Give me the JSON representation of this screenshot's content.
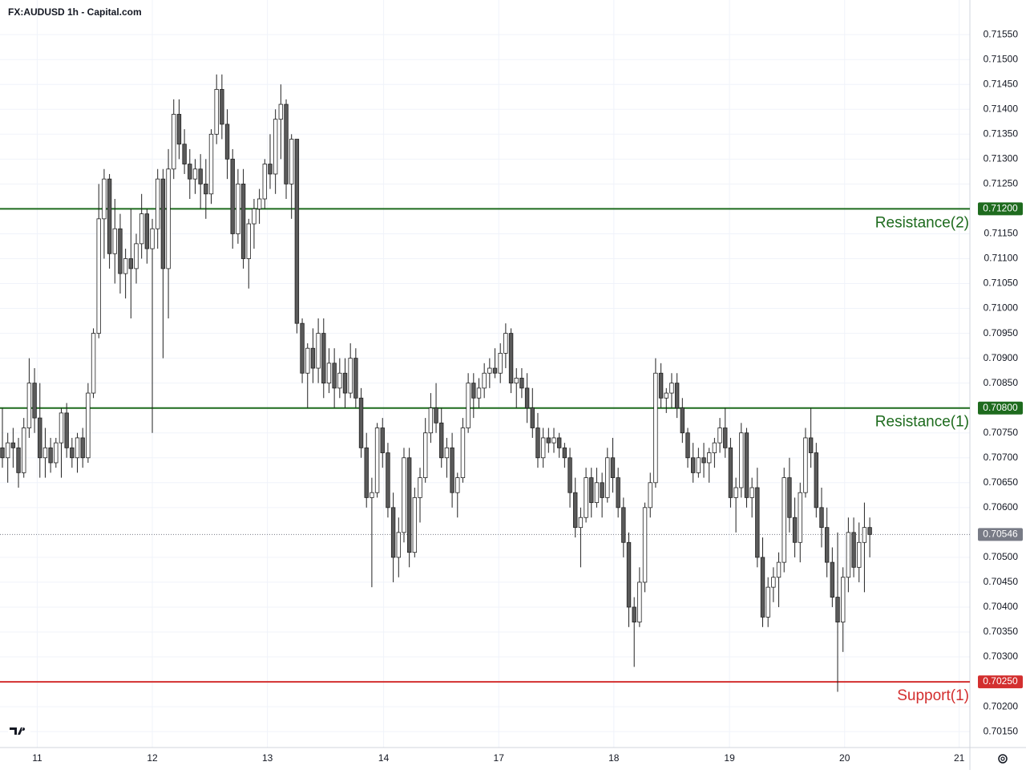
{
  "chart_data": {
    "type": "candlestick",
    "title": "FX:AUDUSD 1h - Capital.com",
    "up_color": "#ffffff",
    "down_color": "#5a5a5a",
    "grid": true,
    "ylim": [
      0.70118,
      0.71568
    ],
    "xlim": [
      -0.45,
      180.7
    ],
    "yticks": [
      {
        "value": 0.7155,
        "label": "0.71550"
      },
      {
        "value": 0.715,
        "label": "0.71500"
      },
      {
        "value": 0.7145,
        "label": "0.71450"
      },
      {
        "value": 0.714,
        "label": "0.71400"
      },
      {
        "value": 0.7135,
        "label": "0.71350"
      },
      {
        "value": 0.713,
        "label": "0.71300"
      },
      {
        "value": 0.7125,
        "label": "0.71250"
      },
      {
        "value": 0.7115,
        "label": "0.71150"
      },
      {
        "value": 0.711,
        "label": "0.71100"
      },
      {
        "value": 0.7105,
        "label": "0.71050"
      },
      {
        "value": 0.71,
        "label": "0.71000"
      },
      {
        "value": 0.7095,
        "label": "0.70950"
      },
      {
        "value": 0.709,
        "label": "0.70900"
      },
      {
        "value": 0.7085,
        "label": "0.70850"
      },
      {
        "value": 0.7075,
        "label": "0.70750"
      },
      {
        "value": 0.707,
        "label": "0.70700"
      },
      {
        "value": 0.7065,
        "label": "0.70650"
      },
      {
        "value": 0.706,
        "label": "0.70600"
      },
      {
        "value": 0.705,
        "label": "0.70500"
      },
      {
        "value": 0.7045,
        "label": "0.70450"
      },
      {
        "value": 0.704,
        "label": "0.70400"
      },
      {
        "value": 0.7035,
        "label": "0.70350"
      },
      {
        "value": 0.703,
        "label": "0.70300"
      },
      {
        "value": 0.702,
        "label": "0.70200"
      },
      {
        "value": 0.7015,
        "label": "0.70150"
      }
    ],
    "xticks": [
      {
        "value": 6.5,
        "label": "11"
      },
      {
        "value": 28,
        "label": "12"
      },
      {
        "value": 49.5,
        "label": "13"
      },
      {
        "value": 71.2,
        "label": "14"
      },
      {
        "value": 92.7,
        "label": "17"
      },
      {
        "value": 114.2,
        "label": "18"
      },
      {
        "value": 135.8,
        "label": "19"
      },
      {
        "value": 157.3,
        "label": "20"
      },
      {
        "value": 178.7,
        "label": "21"
      }
    ],
    "levels": [
      {
        "name": "Resistance(2)",
        "value": 0.712,
        "label": "0.71200",
        "color": "#1e6b1e"
      },
      {
        "name": "Resistance(1)",
        "value": 0.708,
        "label": "0.70800",
        "color": "#1e6b1e"
      },
      {
        "name": "Support(1)",
        "value": 0.7025,
        "label": "0.70250",
        "color": "#d32f2f"
      }
    ],
    "last_price": {
      "value": 0.70546,
      "label": "0.70546",
      "color": "#787b86"
    },
    "ohlc": [
      [
        0.7072,
        0.708,
        0.7068,
        0.707
      ],
      [
        0.707,
        0.7075,
        0.7065,
        0.7073
      ],
      [
        0.7073,
        0.7076,
        0.7068,
        0.7072
      ],
      [
        0.7072,
        0.7074,
        0.7064,
        0.7067
      ],
      [
        0.7067,
        0.7078,
        0.7066,
        0.7076
      ],
      [
        0.7076,
        0.709,
        0.7074,
        0.7085
      ],
      [
        0.7085,
        0.7088,
        0.7075,
        0.7078
      ],
      [
        0.7078,
        0.7085,
        0.7066,
        0.707
      ],
      [
        0.707,
        0.7076,
        0.7066,
        0.7072
      ],
      [
        0.7072,
        0.7074,
        0.7067,
        0.7069
      ],
      [
        0.7069,
        0.7074,
        0.7068,
        0.7073
      ],
      [
        0.7073,
        0.708,
        0.7066,
        0.7079
      ],
      [
        0.7079,
        0.7081,
        0.707,
        0.7072
      ],
      [
        0.7072,
        0.7074,
        0.7068,
        0.707
      ],
      [
        0.707,
        0.7075,
        0.7067,
        0.7074
      ],
      [
        0.7074,
        0.7076,
        0.7068,
        0.707
      ],
      [
        0.707,
        0.7085,
        0.7069,
        0.7083
      ],
      [
        0.7083,
        0.7096,
        0.7082,
        0.7095
      ],
      [
        0.7095,
        0.7125,
        0.7094,
        0.7118
      ],
      [
        0.7118,
        0.7128,
        0.711,
        0.7126
      ],
      [
        0.7126,
        0.7127,
        0.7108,
        0.7111
      ],
      [
        0.7111,
        0.7122,
        0.7105,
        0.7116
      ],
      [
        0.7116,
        0.7119,
        0.7103,
        0.7107
      ],
      [
        0.7107,
        0.7112,
        0.7102,
        0.711
      ],
      [
        0.711,
        0.712,
        0.7098,
        0.7108
      ],
      [
        0.7108,
        0.7115,
        0.7105,
        0.7113
      ],
      [
        0.7113,
        0.7123,
        0.711,
        0.7119
      ],
      [
        0.7119,
        0.712,
        0.7109,
        0.7112
      ],
      [
        0.7112,
        0.7118,
        0.7075,
        0.7116
      ],
      [
        0.7116,
        0.7128,
        0.7112,
        0.7126
      ],
      [
        0.7126,
        0.7128,
        0.709,
        0.7108
      ],
      [
        0.7108,
        0.7132,
        0.7098,
        0.7128
      ],
      [
        0.7128,
        0.7142,
        0.7126,
        0.7139
      ],
      [
        0.7139,
        0.7142,
        0.713,
        0.7133
      ],
      [
        0.7133,
        0.7136,
        0.7127,
        0.7129
      ],
      [
        0.7129,
        0.7132,
        0.7122,
        0.7126
      ],
      [
        0.7126,
        0.713,
        0.7123,
        0.7128
      ],
      [
        0.7128,
        0.7131,
        0.712,
        0.7125
      ],
      [
        0.7125,
        0.713,
        0.7118,
        0.7123
      ],
      [
        0.7123,
        0.7136,
        0.7121,
        0.7135
      ],
      [
        0.7135,
        0.7147,
        0.7133,
        0.7144
      ],
      [
        0.7144,
        0.7147,
        0.7134,
        0.7137
      ],
      [
        0.7137,
        0.714,
        0.7126,
        0.713
      ],
      [
        0.713,
        0.7132,
        0.7112,
        0.7115
      ],
      [
        0.7115,
        0.7128,
        0.7113,
        0.7125
      ],
      [
        0.7125,
        0.7128,
        0.7108,
        0.711
      ],
      [
        0.711,
        0.7118,
        0.7104,
        0.7117
      ],
      [
        0.7117,
        0.7122,
        0.7112,
        0.712
      ],
      [
        0.712,
        0.7124,
        0.7117,
        0.7122
      ],
      [
        0.7122,
        0.713,
        0.712,
        0.7129
      ],
      [
        0.7129,
        0.7135,
        0.7124,
        0.7127
      ],
      [
        0.7127,
        0.714,
        0.7123,
        0.7138
      ],
      [
        0.7138,
        0.7145,
        0.713,
        0.7141
      ],
      [
        0.7141,
        0.7142,
        0.7122,
        0.7125
      ],
      [
        0.7125,
        0.7135,
        0.7118,
        0.7134
      ],
      [
        0.7134,
        0.7134,
        0.7095,
        0.7097
      ],
      [
        0.7097,
        0.7098,
        0.7085,
        0.7087
      ],
      [
        0.7087,
        0.7093,
        0.708,
        0.7092
      ],
      [
        0.7092,
        0.7096,
        0.7085,
        0.7088
      ],
      [
        0.7088,
        0.7098,
        0.7085,
        0.7095
      ],
      [
        0.7095,
        0.7098,
        0.7082,
        0.7085
      ],
      [
        0.7085,
        0.7092,
        0.7083,
        0.7089
      ],
      [
        0.7089,
        0.7092,
        0.708,
        0.7084
      ],
      [
        0.7084,
        0.709,
        0.7082,
        0.7087
      ],
      [
        0.7087,
        0.709,
        0.708,
        0.7083
      ],
      [
        0.7083,
        0.7093,
        0.7082,
        0.709
      ],
      [
        0.709,
        0.7092,
        0.708,
        0.7082
      ],
      [
        0.7082,
        0.7084,
        0.707,
        0.7072
      ],
      [
        0.7072,
        0.7075,
        0.706,
        0.7062
      ],
      [
        0.7062,
        0.7066,
        0.7044,
        0.7063
      ],
      [
        0.7063,
        0.7077,
        0.7062,
        0.7076
      ],
      [
        0.7076,
        0.7078,
        0.7068,
        0.7071
      ],
      [
        0.7071,
        0.7073,
        0.7058,
        0.706
      ],
      [
        0.706,
        0.7063,
        0.7045,
        0.705
      ],
      [
        0.705,
        0.7058,
        0.7046,
        0.7055
      ],
      [
        0.7055,
        0.7072,
        0.7053,
        0.707
      ],
      [
        0.707,
        0.7072,
        0.7048,
        0.7051
      ],
      [
        0.7051,
        0.7064,
        0.705,
        0.7062
      ],
      [
        0.7062,
        0.7068,
        0.7057,
        0.7066
      ],
      [
        0.7066,
        0.7078,
        0.7065,
        0.7075
      ],
      [
        0.7075,
        0.7083,
        0.7073,
        0.708
      ],
      [
        0.708,
        0.7085,
        0.7075,
        0.7077
      ],
      [
        0.7077,
        0.708,
        0.7068,
        0.707
      ],
      [
        0.707,
        0.7074,
        0.7066,
        0.7072
      ],
      [
        0.7072,
        0.7075,
        0.706,
        0.7063
      ],
      [
        0.7063,
        0.7067,
        0.7058,
        0.7066
      ],
      [
        0.7066,
        0.7078,
        0.7065,
        0.7076
      ],
      [
        0.7076,
        0.7087,
        0.7075,
        0.7085
      ],
      [
        0.7085,
        0.7087,
        0.7078,
        0.7082
      ],
      [
        0.7082,
        0.7086,
        0.708,
        0.7084
      ],
      [
        0.7084,
        0.7089,
        0.7082,
        0.7087
      ],
      [
        0.7087,
        0.709,
        0.7084,
        0.7088
      ],
      [
        0.7088,
        0.7092,
        0.7086,
        0.7087
      ],
      [
        0.7087,
        0.7093,
        0.7085,
        0.7091
      ],
      [
        0.7091,
        0.7097,
        0.7088,
        0.7095
      ],
      [
        0.7095,
        0.7096,
        0.7083,
        0.7085
      ],
      [
        0.7085,
        0.7088,
        0.708,
        0.7086
      ],
      [
        0.7086,
        0.7088,
        0.7082,
        0.7084
      ],
      [
        0.7084,
        0.7087,
        0.7077,
        0.708
      ],
      [
        0.708,
        0.7084,
        0.7074,
        0.7076
      ],
      [
        0.7076,
        0.7079,
        0.7068,
        0.707
      ],
      [
        0.707,
        0.7076,
        0.7068,
        0.7074
      ],
      [
        0.7074,
        0.7076,
        0.7071,
        0.7073
      ],
      [
        0.7073,
        0.7076,
        0.7071,
        0.7074
      ],
      [
        0.7074,
        0.7075,
        0.707,
        0.7072
      ],
      [
        0.7072,
        0.7073,
        0.7068,
        0.707
      ],
      [
        0.707,
        0.7072,
        0.706,
        0.7063
      ],
      [
        0.7063,
        0.7066,
        0.7054,
        0.7056
      ],
      [
        0.7056,
        0.706,
        0.7048,
        0.7058
      ],
      [
        0.7058,
        0.7068,
        0.7057,
        0.7066
      ],
      [
        0.7066,
        0.7068,
        0.7058,
        0.7061
      ],
      [
        0.7061,
        0.7068,
        0.706,
        0.7065
      ],
      [
        0.7065,
        0.7067,
        0.7058,
        0.7062
      ],
      [
        0.7062,
        0.7072,
        0.7061,
        0.707
      ],
      [
        0.707,
        0.7074,
        0.7063,
        0.7066
      ],
      [
        0.7066,
        0.7068,
        0.7058,
        0.706
      ],
      [
        0.706,
        0.7062,
        0.705,
        0.7053
      ],
      [
        0.7053,
        0.7055,
        0.7036,
        0.704
      ],
      [
        0.704,
        0.7042,
        0.7028,
        0.7037
      ],
      [
        0.7037,
        0.7048,
        0.7036,
        0.7045
      ],
      [
        0.7045,
        0.7061,
        0.7043,
        0.706
      ],
      [
        0.706,
        0.7067,
        0.7058,
        0.7065
      ],
      [
        0.7065,
        0.709,
        0.7064,
        0.7087
      ],
      [
        0.7087,
        0.7089,
        0.708,
        0.7082
      ],
      [
        0.7082,
        0.7084,
        0.7079,
        0.7083
      ],
      [
        0.7083,
        0.7087,
        0.708,
        0.7085
      ],
      [
        0.7085,
        0.7087,
        0.7078,
        0.708
      ],
      [
        0.708,
        0.7082,
        0.7073,
        0.7075
      ],
      [
        0.7075,
        0.7076,
        0.7068,
        0.707
      ],
      [
        0.707,
        0.7073,
        0.7065,
        0.7067
      ],
      [
        0.7067,
        0.7072,
        0.7066,
        0.707
      ],
      [
        0.707,
        0.7073,
        0.7066,
        0.7069
      ],
      [
        0.7069,
        0.7072,
        0.7065,
        0.7071
      ],
      [
        0.7071,
        0.7074,
        0.7068,
        0.7073
      ],
      [
        0.7073,
        0.7078,
        0.7071,
        0.7076
      ],
      [
        0.7076,
        0.708,
        0.707,
        0.7072
      ],
      [
        0.7072,
        0.7074,
        0.706,
        0.7062
      ],
      [
        0.7062,
        0.7066,
        0.7055,
        0.7064
      ],
      [
        0.7064,
        0.7077,
        0.7062,
        0.7075
      ],
      [
        0.7075,
        0.7076,
        0.706,
        0.7062
      ],
      [
        0.7062,
        0.7066,
        0.7058,
        0.7064
      ],
      [
        0.7064,
        0.7068,
        0.7048,
        0.705
      ],
      [
        0.705,
        0.7054,
        0.7036,
        0.7038
      ],
      [
        0.7038,
        0.7046,
        0.7036,
        0.7044
      ],
      [
        0.7044,
        0.7048,
        0.7041,
        0.7046
      ],
      [
        0.7046,
        0.7051,
        0.704,
        0.7049
      ],
      [
        0.7049,
        0.7068,
        0.7047,
        0.7066
      ],
      [
        0.7066,
        0.707,
        0.7055,
        0.7058
      ],
      [
        0.7058,
        0.7062,
        0.705,
        0.7053
      ],
      [
        0.7053,
        0.7065,
        0.7049,
        0.7063
      ],
      [
        0.7063,
        0.7076,
        0.7062,
        0.7074
      ],
      [
        0.7074,
        0.708,
        0.7068,
        0.7071
      ],
      [
        0.7071,
        0.7073,
        0.7058,
        0.706
      ],
      [
        0.706,
        0.7064,
        0.7052,
        0.7056
      ],
      [
        0.7056,
        0.706,
        0.7046,
        0.7049
      ],
      [
        0.7049,
        0.7052,
        0.704,
        0.7042
      ],
      [
        0.7042,
        0.7055,
        0.7023,
        0.7037
      ],
      [
        0.7037,
        0.7048,
        0.7031,
        0.7046
      ],
      [
        0.7046,
        0.7058,
        0.7043,
        0.7055
      ],
      [
        0.7055,
        0.7058,
        0.7046,
        0.7048
      ],
      [
        0.7048,
        0.7057,
        0.7045,
        0.7053
      ],
      [
        0.7053,
        0.7061,
        0.7043,
        0.7056
      ],
      [
        0.7056,
        0.7058,
        0.705,
        0.70546
      ]
    ]
  }
}
